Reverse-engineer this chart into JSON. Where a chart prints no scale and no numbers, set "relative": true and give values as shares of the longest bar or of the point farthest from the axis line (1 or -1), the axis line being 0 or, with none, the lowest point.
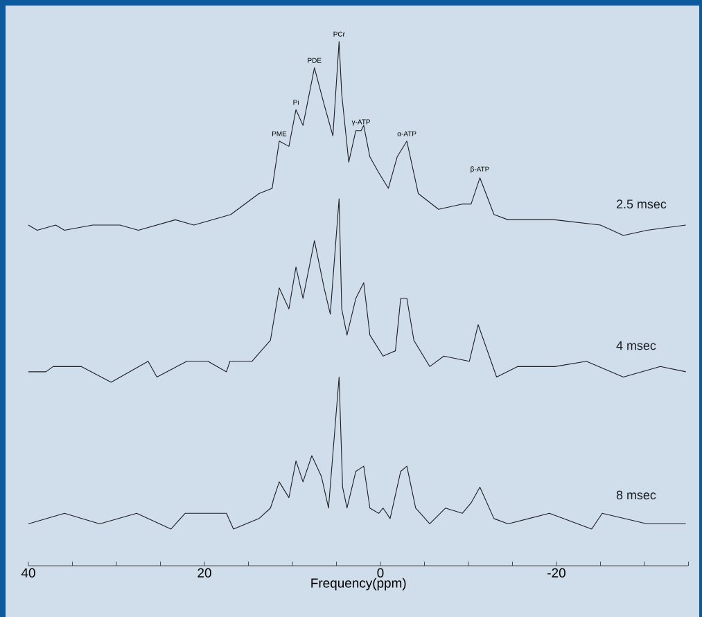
{
  "chart_data": {
    "type": "line",
    "relative": true,
    "xlim": [
      40,
      -35
    ],
    "xlabel": "Frequency(ppm)",
    "xticks": [
      40,
      {
        "value": 35,
        "label": null
      },
      {
        "value": 30,
        "label": null
      },
      {
        "value": 25,
        "label": null
      },
      20,
      {
        "value": 15,
        "label": null
      },
      {
        "value": 10,
        "label": null
      },
      {
        "value": 5,
        "label": null
      },
      0,
      {
        "value": -5,
        "label": null
      },
      {
        "value": -10,
        "label": null
      },
      {
        "value": -15,
        "label": null
      },
      -20,
      {
        "value": -25,
        "label": null
      },
      {
        "value": -30,
        "label": null
      },
      {
        "value": -35,
        "label": null
      }
    ],
    "series": [
      {
        "name": "2.5 msec",
        "color": "#1c1c24",
        "x": [
          40.0,
          39.0,
          36.9,
          35.9,
          32.7,
          29.6,
          27.5,
          23.3,
          21.2,
          17.0,
          13.8,
          12.3,
          11.5,
          10.4,
          9.6,
          8.8,
          7.5,
          6.4,
          5.4,
          4.7,
          4.4,
          3.6,
          2.8,
          2.2,
          1.9,
          1.2,
          0.2,
          -0.9,
          -1.9,
          -3.0,
          -4.3,
          -6.6,
          -9.3,
          -10.3,
          -11.3,
          -12.9,
          -14.5,
          -19.8,
          -25.0,
          -27.6,
          -30.3,
          -34.7
        ],
        "values": [
          0.65,
          0.64,
          0.65,
          0.64,
          0.65,
          0.65,
          0.64,
          0.66,
          0.65,
          0.67,
          0.71,
          0.72,
          0.81,
          0.8,
          0.87,
          0.84,
          0.95,
          0.88,
          0.82,
          1,
          0.9,
          0.77,
          0.83,
          0.83,
          0.84,
          0.78,
          0.75,
          0.72,
          0.78,
          0.81,
          0.71,
          0.68,
          0.69,
          0.69,
          0.74,
          0.67,
          0.66,
          0.66,
          0.65,
          0.63,
          0.64,
          0.65
        ]
      },
      {
        "name": "4 msec",
        "color": "#1c1c24",
        "x": [
          40.0,
          38.0,
          37.2,
          34.0,
          30.6,
          26.4,
          25.4,
          22.0,
          19.6,
          17.5,
          17.1,
          14.6,
          12.5,
          11.5,
          10.4,
          9.6,
          8.8,
          7.5,
          6.4,
          5.7,
          4.7,
          4.4,
          3.8,
          2.8,
          1.9,
          1.2,
          -0.3,
          -1.7,
          -2.3,
          -3.0,
          -3.8,
          -5.6,
          -7.2,
          -10.1,
          -11.1,
          -13.2,
          -15.6,
          -19.8,
          -23.4,
          -27.6,
          -31.8,
          -34.7
        ],
        "values": [
          0.37,
          0.37,
          0.38,
          0.38,
          0.35,
          0.39,
          0.36,
          0.39,
          0.39,
          0.37,
          0.39,
          0.39,
          0.43,
          0.53,
          0.49,
          0.57,
          0.51,
          0.62,
          0.53,
          0.48,
          0.7,
          0.49,
          0.44,
          0.51,
          0.54,
          0.44,
          0.4,
          0.41,
          0.51,
          0.51,
          0.43,
          0.38,
          0.4,
          0.39,
          0.46,
          0.36,
          0.38,
          0.38,
          0.39,
          0.36,
          0.38,
          0.37
        ]
      },
      {
        "name": "8 msec",
        "color": "#1c1c24",
        "x": [
          40.0,
          35.9,
          31.9,
          27.7,
          23.8,
          22.2,
          17.5,
          16.7,
          13.8,
          12.5,
          11.5,
          10.4,
          9.6,
          8.8,
          7.8,
          6.7,
          5.9,
          4.7,
          4.3,
          3.8,
          2.8,
          1.9,
          1.2,
          0.2,
          -0.3,
          -1.1,
          -2.3,
          -3.0,
          -4.0,
          -5.6,
          -7.4,
          -9.3,
          -10.3,
          -11.3,
          -12.9,
          -14.5,
          -19.2,
          -24.0,
          -25.2,
          -30.3,
          -34.7
        ],
        "values": [
          0.08,
          0.1,
          0.08,
          0.1,
          0.07,
          0.1,
          0.1,
          0.07,
          0.09,
          0.11,
          0.16,
          0.13,
          0.2,
          0.16,
          0.21,
          0.17,
          0.11,
          0.36,
          0.15,
          0.11,
          0.18,
          0.19,
          0.11,
          0.1,
          0.11,
          0.09,
          0.18,
          0.19,
          0.11,
          0.08,
          0.11,
          0.1,
          0.12,
          0.15,
          0.09,
          0.08,
          0.1,
          0.07,
          0.1,
          0.08,
          0.08
        ]
      }
    ],
    "annotations": [
      {
        "text": "PME",
        "x": 11.5,
        "y": 0.81
      },
      {
        "text": "Pi",
        "x": 9.6,
        "y": 0.87
      },
      {
        "text": "PDE",
        "x": 7.5,
        "y": 0.95
      },
      {
        "text": "PCr",
        "x": 4.7,
        "y": 1
      },
      {
        "text": "γ-ATP",
        "x": 2.2,
        "y": 0.83
      },
      {
        "text": "α-ATP",
        "x": -3.0,
        "y": 0.81
      },
      {
        "text": "β-ATP",
        "x": -11.3,
        "y": 0.74
      }
    ]
  }
}
